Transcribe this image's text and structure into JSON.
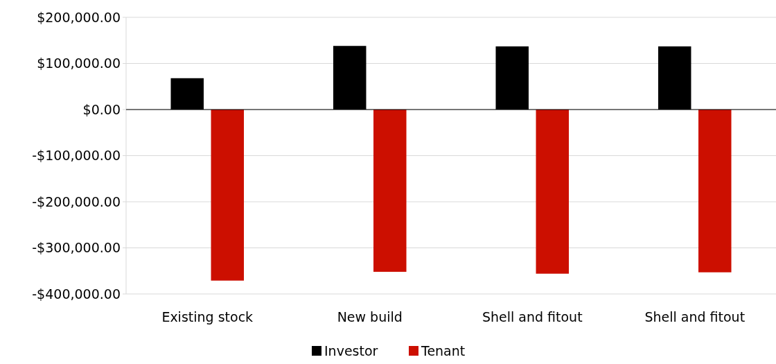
{
  "chart_data": {
    "type": "bar",
    "categories": [
      "Existing stock",
      "New build",
      "Shell and fitout",
      "Shell and fitout"
    ],
    "series": [
      {
        "name": "Investor",
        "color": "#000000",
        "values": [
          68000,
          138000,
          137000,
          137000
        ]
      },
      {
        "name": "Tenant",
        "color": "#cc0f00",
        "values": [
          -371000,
          -352000,
          -356000,
          -353000
        ]
      }
    ],
    "ylim": [
      -400000,
      200000
    ],
    "yticks": [
      {
        "value": -400000,
        "label": "-$400,000.00"
      },
      {
        "value": -300000,
        "label": "-$300,000.00"
      },
      {
        "value": -200000,
        "label": "-$200,000.00"
      },
      {
        "value": -100000,
        "label": "-$100,000.00"
      },
      {
        "value": 0,
        "label": "$0.00"
      },
      {
        "value": 100000,
        "label": "$100,000.00"
      },
      {
        "value": 200000,
        "label": "$200,000.00"
      }
    ],
    "grid": "y",
    "legend": "bottom"
  }
}
